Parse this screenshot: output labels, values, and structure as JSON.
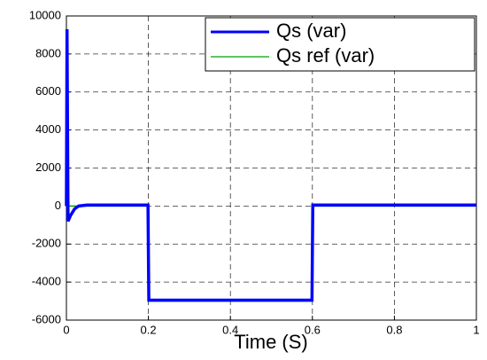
{
  "chart_data": {
    "type": "line",
    "xlabel": "Time (S)",
    "x": [
      0,
      0.0015,
      0.004,
      0.01,
      0.02,
      0.03,
      0.05,
      0.1,
      0.199,
      0.201,
      0.4,
      0.599,
      0.601,
      0.8,
      1
    ],
    "series": [
      {
        "name": "Qs (var)",
        "color": "#0000ff",
        "values": [
          0,
          9300,
          -800,
          -500,
          -150,
          0,
          50,
          50,
          50,
          -4950,
          -4950,
          -4950,
          50,
          50,
          50
        ]
      },
      {
        "name": "Qs ref (var)",
        "color": "#00a000",
        "values": [
          0,
          0,
          0,
          0,
          0,
          0,
          0,
          0,
          0,
          -5000,
          -5000,
          -5000,
          0,
          0,
          0
        ]
      }
    ],
    "xlim": [
      0,
      1
    ],
    "xticks": [
      0,
      0.2,
      0.4,
      0.6,
      0.8,
      1
    ],
    "ylim": [
      -6000,
      10000
    ],
    "yticks": [
      -6000,
      -4000,
      -2000,
      0,
      2000,
      4000,
      6000,
      8000,
      10000
    ],
    "grid": true,
    "legend": "top-right"
  }
}
